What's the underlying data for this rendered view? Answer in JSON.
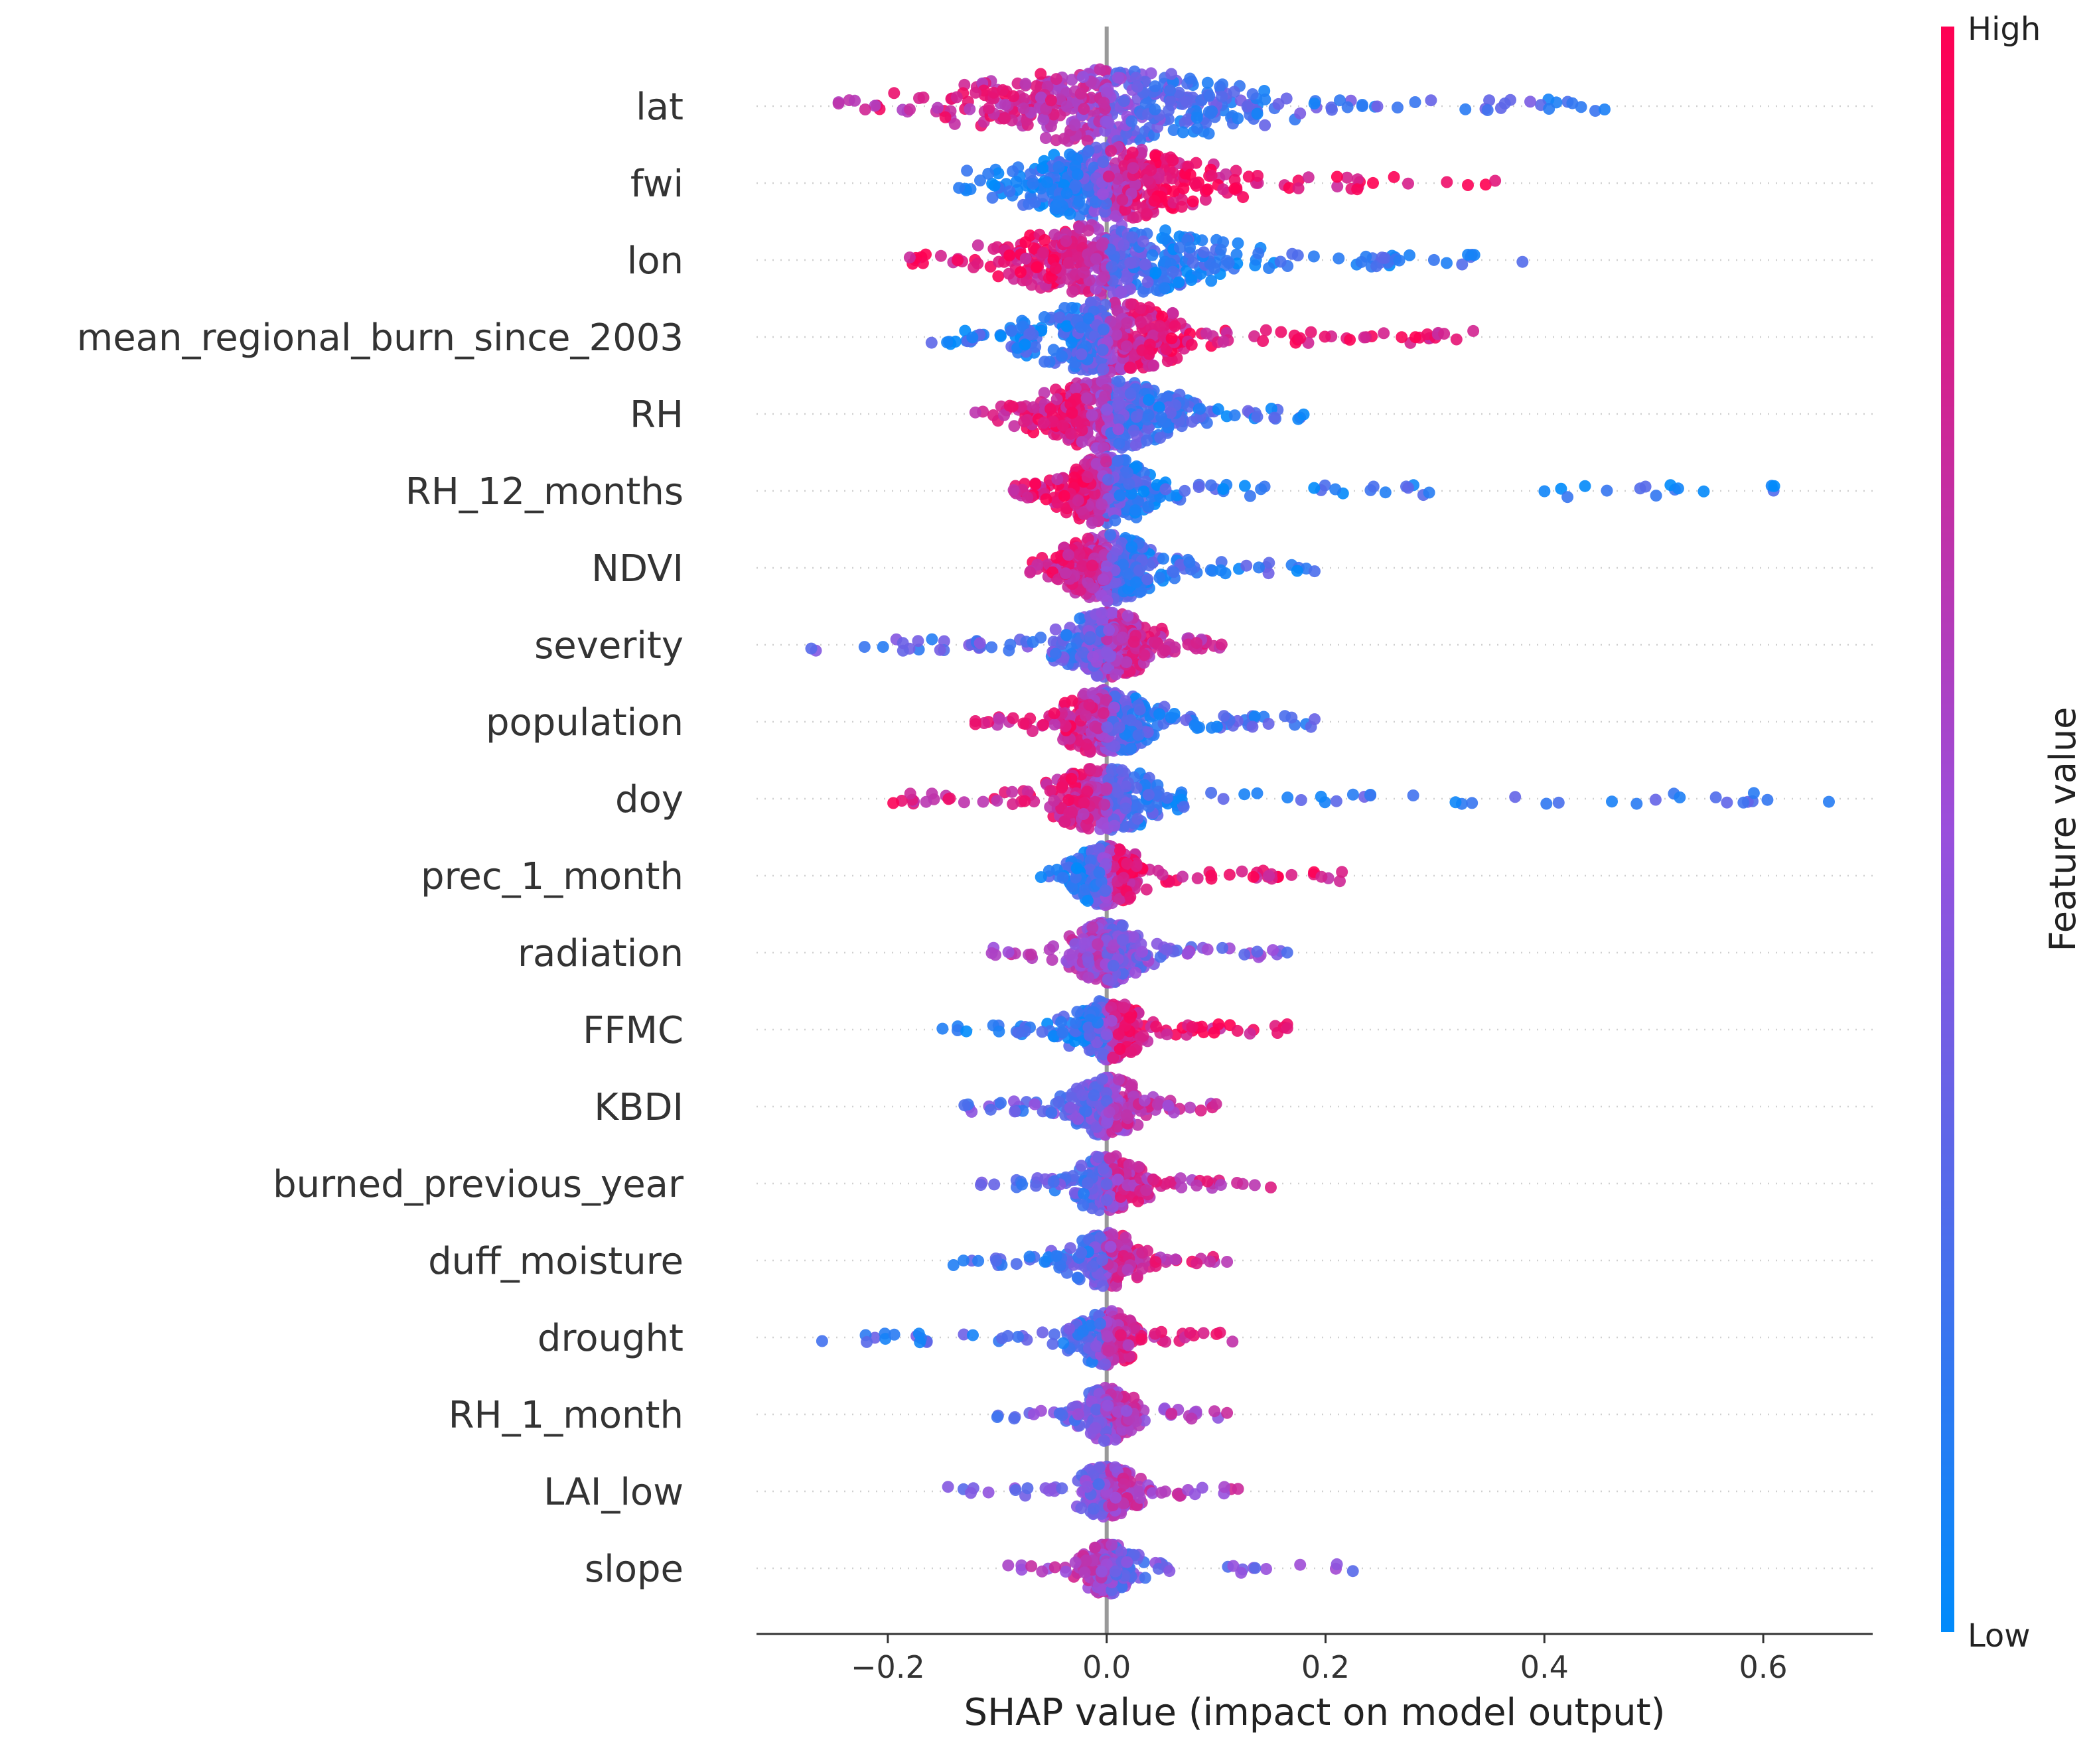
{
  "chart_data": {
    "type": "scatter",
    "subtype": "shap_beeswarm",
    "xlabel": "SHAP value (impact on model output)",
    "xlim": [
      -0.32,
      0.7
    ],
    "xticks": [
      -0.2,
      0.0,
      0.2,
      0.4,
      0.6
    ],
    "xtick_labels": [
      "−0.2",
      "0.0",
      "0.2",
      "0.4",
      "0.6"
    ],
    "colorbar": {
      "title": "Feature value",
      "high_label": "High",
      "low_label": "Low",
      "high_color": "#ff0052",
      "mid_color": "#9a4fdc",
      "low_color": "#008bfb"
    },
    "features": [
      {
        "name": "lat",
        "min": -0.245,
        "max": 0.455,
        "core": 0.12,
        "bias": -0.6
      },
      {
        "name": "fwi",
        "min": -0.135,
        "max": 0.355,
        "core": 0.08,
        "bias": 0.9
      },
      {
        "name": "lon",
        "min": -0.18,
        "max": 0.38,
        "core": 0.09,
        "bias": -0.8
      },
      {
        "name": "mean_regional_burn_since_2003",
        "min": -0.16,
        "max": 0.335,
        "core": 0.07,
        "bias": 0.8
      },
      {
        "name": "RH",
        "min": -0.12,
        "max": 0.18,
        "core": 0.06,
        "bias": -0.7
      },
      {
        "name": "RH_12_months",
        "min": -0.085,
        "max": 0.61,
        "core": 0.04,
        "bias": -0.8
      },
      {
        "name": "NDVI",
        "min": -0.07,
        "max": 0.19,
        "core": 0.04,
        "bias": -0.7
      },
      {
        "name": "severity",
        "min": -0.27,
        "max": 0.105,
        "core": 0.04,
        "bias": 0.5
      },
      {
        "name": "population",
        "min": -0.12,
        "max": 0.19,
        "core": 0.04,
        "bias": -0.7
      },
      {
        "name": "doy",
        "min": -0.195,
        "max": 0.66,
        "core": 0.05,
        "bias": -0.7
      },
      {
        "name": "prec_1_month",
        "min": -0.06,
        "max": 0.215,
        "core": 0.03,
        "bias": 0.8
      },
      {
        "name": "radiation",
        "min": -0.105,
        "max": 0.165,
        "core": 0.03,
        "bias": -0.2
      },
      {
        "name": "FFMC",
        "min": -0.15,
        "max": 0.165,
        "core": 0.03,
        "bias": 0.8
      },
      {
        "name": "KBDI",
        "min": -0.13,
        "max": 0.1,
        "core": 0.03,
        "bias": 0.4
      },
      {
        "name": "burned_previous_year",
        "min": -0.115,
        "max": 0.15,
        "core": 0.03,
        "bias": 0.5
      },
      {
        "name": "duff_moisture",
        "min": -0.14,
        "max": 0.11,
        "core": 0.03,
        "bias": 0.6
      },
      {
        "name": "drought",
        "min": -0.26,
        "max": 0.115,
        "core": 0.03,
        "bias": 0.6
      },
      {
        "name": "RH_1_month",
        "min": -0.1,
        "max": 0.11,
        "core": 0.025,
        "bias": 0.3
      },
      {
        "name": "LAI_low",
        "min": -0.145,
        "max": 0.12,
        "core": 0.025,
        "bias": 0.3
      },
      {
        "name": "slope",
        "min": -0.09,
        "max": 0.225,
        "core": 0.025,
        "bias": -0.3
      }
    ]
  }
}
